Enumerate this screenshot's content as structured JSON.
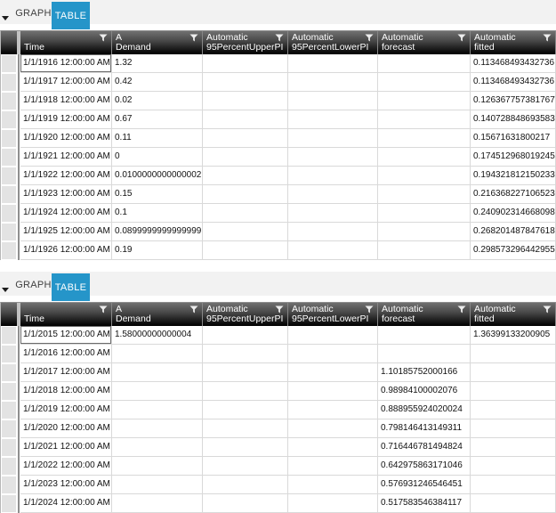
{
  "colors": {
    "active_tab_bg": "#2595c9",
    "active_tab_text": "#ffffff",
    "header_gradient_top": "#707070",
    "header_gradient_bottom": "#000000",
    "row_header_bg": "#e3e3e3",
    "grid_line": "#d9d9d9"
  },
  "icons": {
    "filter": "funnel-icon",
    "panel_corner": "dropdown-arrow-icon"
  },
  "tabs": [
    {
      "label": "GRAPH",
      "active": false
    },
    {
      "label": "TABLE",
      "active": true
    }
  ],
  "columns": [
    {
      "line1": "",
      "line2": "Time"
    },
    {
      "line1": "A",
      "line2": "Demand"
    },
    {
      "line1": "Automatic",
      "line2": "95PercentUpperPI"
    },
    {
      "line1": "Automatic",
      "line2": "95PercentLowerPI"
    },
    {
      "line1": "Automatic",
      "line2": "forecast"
    },
    {
      "line1": "Automatic",
      "line2": "fitted"
    }
  ],
  "panels": [
    {
      "name": "historical-series-table",
      "rows": [
        {
          "time": "1/1/1916 12:00:00 AM",
          "demand": "1.32",
          "upper": "",
          "lower": "",
          "forecast": "",
          "fitted": "0.113468493432736"
        },
        {
          "time": "1/1/1917 12:00:00 AM",
          "demand": "0.42",
          "upper": "",
          "lower": "",
          "forecast": "",
          "fitted": "0.113468493432736"
        },
        {
          "time": "1/1/1918 12:00:00 AM",
          "demand": "0.02",
          "upper": "",
          "lower": "",
          "forecast": "",
          "fitted": "0.126367757381767"
        },
        {
          "time": "1/1/1919 12:00:00 AM",
          "demand": "0.67",
          "upper": "",
          "lower": "",
          "forecast": "",
          "fitted": "0.140728848693583"
        },
        {
          "time": "1/1/1920 12:00:00 AM",
          "demand": "0.11",
          "upper": "",
          "lower": "",
          "forecast": "",
          "fitted": "0.15671631800217"
        },
        {
          "time": "1/1/1921 12:00:00 AM",
          "demand": "0",
          "upper": "",
          "lower": "",
          "forecast": "",
          "fitted": "0.174512968019245"
        },
        {
          "time": "1/1/1922 12:00:00 AM",
          "demand": "0.0100000000000002",
          "upper": "",
          "lower": "",
          "forecast": "",
          "fitted": "0.194321812150233"
        },
        {
          "time": "1/1/1923 12:00:00 AM",
          "demand": "0.15",
          "upper": "",
          "lower": "",
          "forecast": "",
          "fitted": "0.216368227106523"
        },
        {
          "time": "1/1/1924 12:00:00 AM",
          "demand": "0.1",
          "upper": "",
          "lower": "",
          "forecast": "",
          "fitted": "0.240902314668098"
        },
        {
          "time": "1/1/1925 12:00:00 AM",
          "demand": "0.0899999999999999",
          "upper": "",
          "lower": "",
          "forecast": "",
          "fitted": "0.268201487847618"
        },
        {
          "time": "1/1/1926 12:00:00 AM",
          "demand": "0.19",
          "upper": "",
          "lower": "",
          "forecast": "",
          "fitted": "0.298573296442955"
        }
      ]
    },
    {
      "name": "forecast-series-table",
      "rows": [
        {
          "time": "1/1/2015 12:00:00 AM",
          "demand": "1.58000000000004",
          "upper": "",
          "lower": "",
          "forecast": "",
          "fitted": "1.36399133200905"
        },
        {
          "time": "1/1/2016 12:00:00 AM",
          "demand": "",
          "upper": "",
          "lower": "",
          "forecast": "",
          "fitted": ""
        },
        {
          "time": "1/1/2017 12:00:00 AM",
          "demand": "",
          "upper": "",
          "lower": "",
          "forecast": "1.10185752000166",
          "fitted": ""
        },
        {
          "time": "1/1/2018 12:00:00 AM",
          "demand": "",
          "upper": "",
          "lower": "",
          "forecast": "0.98984100002076",
          "fitted": ""
        },
        {
          "time": "1/1/2019 12:00:00 AM",
          "demand": "",
          "upper": "",
          "lower": "",
          "forecast": "0.888955924020024",
          "fitted": ""
        },
        {
          "time": "1/1/2020 12:00:00 AM",
          "demand": "",
          "upper": "",
          "lower": "",
          "forecast": "0.798146413149311",
          "fitted": ""
        },
        {
          "time": "1/1/2021 12:00:00 AM",
          "demand": "",
          "upper": "",
          "lower": "",
          "forecast": "0.716446781494824",
          "fitted": ""
        },
        {
          "time": "1/1/2022 12:00:00 AM",
          "demand": "",
          "upper": "",
          "lower": "",
          "forecast": "0.642975863171046",
          "fitted": ""
        },
        {
          "time": "1/1/2023 12:00:00 AM",
          "demand": "",
          "upper": "",
          "lower": "",
          "forecast": "0.576931246546451",
          "fitted": ""
        },
        {
          "time": "1/1/2024 12:00:00 AM",
          "demand": "",
          "upper": "",
          "lower": "",
          "forecast": "0.517583546384117",
          "fitted": ""
        }
      ]
    }
  ]
}
